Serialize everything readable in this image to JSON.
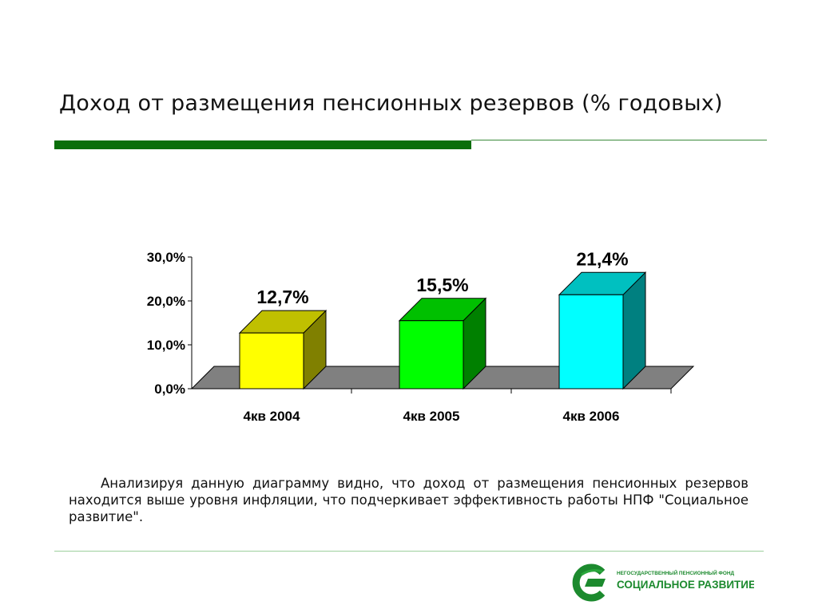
{
  "slide": {
    "title": "Доход от размещения пенсионных резервов (% годовых)",
    "description": "Анализируя данную диаграмму видно, что доход от размещения пенсионных резервов находится выше уровня инфляции, что подчеркивает эффективность работы НПФ \"Социальное развитие\"."
  },
  "logo": {
    "line1": "НЕГОСУДАРСТВЕННЫЙ ПЕНСИОННЫЙ ФОНД",
    "line2": "СОЦИАЛЬНОЕ РАЗВИТИЕ",
    "color": "#1c8a2e"
  },
  "colors": {
    "accent_green": "#0a6e0a",
    "floor": "#808080"
  },
  "chart_data": {
    "type": "bar",
    "style": "3d-column",
    "categories": [
      "4кв 2004",
      "4кв 2005",
      "4кв 2006"
    ],
    "values": [
      12.7,
      15.5,
      21.4
    ],
    "value_labels": [
      "12,7%",
      "15,5%",
      "21,4%"
    ],
    "ylim": [
      0,
      30
    ],
    "yticks": [
      {
        "value": 0,
        "label": "0,0%"
      },
      {
        "value": 10,
        "label": "10,0%"
      },
      {
        "value": 20,
        "label": "20,0%"
      },
      {
        "value": 30,
        "label": "30,0%"
      }
    ],
    "title": "",
    "xlabel": "",
    "ylabel": "",
    "grid": false,
    "legend": false,
    "bar_colors": [
      {
        "front": "#ffff00",
        "top": "#c0c000",
        "side": "#808000"
      },
      {
        "front": "#00ff00",
        "top": "#00c000",
        "side": "#008000"
      },
      {
        "front": "#00ffff",
        "top": "#00c0c0",
        "side": "#008080"
      }
    ]
  }
}
